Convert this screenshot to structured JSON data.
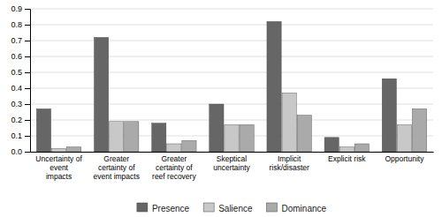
{
  "chart_data": {
    "type": "bar",
    "categories": [
      "Uncertainty of event\nimpacts",
      "Greater certainty of\nevent impacts",
      "Greater certainty of\nreef recovery",
      "Skeptical uncertainty",
      "Implicit risk/disaster",
      "Explicit risk",
      "Opportunity"
    ],
    "series": [
      {
        "name": "Presence",
        "color": "#666666",
        "values": [
          0.27,
          0.72,
          0.18,
          0.3,
          0.82,
          0.09,
          0.46
        ]
      },
      {
        "name": "Salience",
        "color": "#c8c8c8",
        "values": [
          0.02,
          0.19,
          0.05,
          0.17,
          0.37,
          0.03,
          0.17
        ]
      },
      {
        "name": "Dominance",
        "color": "#aaaaaa",
        "values": [
          0.03,
          0.19,
          0.07,
          0.17,
          0.23,
          0.05,
          0.27
        ]
      }
    ],
    "ylim": [
      0,
      0.9
    ],
    "yticks": [
      {
        "value": 0.0,
        "label": "0.0"
      },
      0.1,
      0.2,
      0.3,
      0.4,
      0.5,
      0.6,
      0.7,
      0.8,
      0.9
    ],
    "grid": true,
    "legend": "bottom"
  }
}
